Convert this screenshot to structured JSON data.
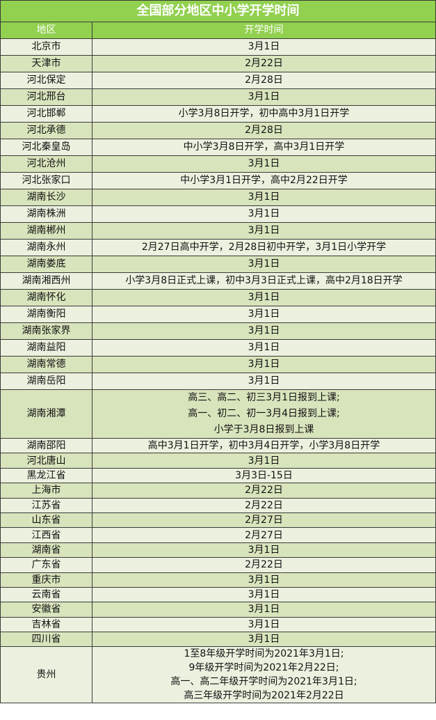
{
  "title": "全国部分地区中小学开学时间",
  "headers": [
    "地区",
    "开学时间"
  ],
  "colors": {
    "header_green": "#92d050",
    "row_dark": "#d8e4bc",
    "row_light": "#ebf1de"
  },
  "rows": [
    {
      "region": "北京市",
      "time": [
        "3月1日"
      ]
    },
    {
      "region": "天津市",
      "time": [
        "2月22日"
      ]
    },
    {
      "region": "河北保定",
      "time": [
        "2月28日"
      ]
    },
    {
      "region": "河北邢台",
      "time": [
        "3月1日"
      ]
    },
    {
      "region": "河北邯郸",
      "time": [
        "小学3月8日开学，初中高中3月1日开学"
      ]
    },
    {
      "region": "河北承德",
      "time": [
        "2月28日"
      ]
    },
    {
      "region": "河北秦皇岛",
      "time": [
        "中小学3月8日开学，高中3月1日开学"
      ]
    },
    {
      "region": "河北沧州",
      "time": [
        "3月1日"
      ]
    },
    {
      "region": "河北张家口",
      "time": [
        "中小学3月1日开学，高中2月22日开学"
      ]
    },
    {
      "region": "湖南长沙",
      "time": [
        "3月1日"
      ]
    },
    {
      "region": "湖南株洲",
      "time": [
        "3月1日"
      ]
    },
    {
      "region": "湖南郴州",
      "time": [
        "3月1日"
      ]
    },
    {
      "region": "湖南永州",
      "time": [
        "2月27日高中开学，2月28日初中开学，3月1日小学开学"
      ]
    },
    {
      "region": "湖南娄底",
      "time": [
        "3月1日"
      ]
    },
    {
      "region": "湖南湘西州",
      "time": [
        "小学3月8日正式上课，初中3月3日正式上课，高中2月18日开学"
      ]
    },
    {
      "region": "湖南怀化",
      "time": [
        "3月1日"
      ]
    },
    {
      "region": "湖南衡阳",
      "time": [
        "3月1日"
      ]
    },
    {
      "region": "湖南张家界",
      "time": [
        "3月1日"
      ]
    },
    {
      "region": "湖南益阳",
      "time": [
        "3月1日"
      ]
    },
    {
      "region": "湖南常德",
      "time": [
        "3月1日"
      ]
    },
    {
      "region": "湖南岳阳",
      "time": [
        "3月1日"
      ]
    },
    {
      "region": "湖南湘潭",
      "time": [
        "高三、高二、初三3月1日报到上课;",
        "高一、初二、初一3月4日报到上课;",
        "小学于3月8日报到上课"
      ]
    },
    {
      "region": "湖南邵阳",
      "time": [
        "高中3月1日开学，初中3月4日开学，小学3月8日开学"
      ]
    },
    {
      "region": "河北唐山",
      "time": [
        "3月1日"
      ]
    },
    {
      "region": "黑龙江省",
      "time": [
        "3月3日-15日"
      ]
    },
    {
      "region": "上海市",
      "time": [
        "2月22日"
      ]
    },
    {
      "region": "江苏省",
      "time": [
        "2月22日"
      ]
    },
    {
      "region": "山东省",
      "time": [
        "2月27日"
      ]
    },
    {
      "region": "江西省",
      "time": [
        "2月27日"
      ]
    },
    {
      "region": "湖南省",
      "time": [
        "3月1日"
      ]
    },
    {
      "region": "广东省",
      "time": [
        "2月22日"
      ]
    },
    {
      "region": "重庆市",
      "time": [
        "3月1日"
      ]
    },
    {
      "region": "云南省",
      "time": [
        "3月1日"
      ]
    },
    {
      "region": "安徽省",
      "time": [
        "3月1日"
      ]
    },
    {
      "region": "吉林省",
      "time": [
        "3月1日"
      ]
    },
    {
      "region": "四川省",
      "time": [
        "3月1日"
      ]
    },
    {
      "region": "贵州",
      "time": [
        "1至8年级开学时间为2021年3月1日;",
        "9年级开学时间为2021年2月22日;",
        "高一、高二年级开学时间为2021年3月1日;",
        "高三年级开学时间为2021年2月22日"
      ]
    }
  ]
}
